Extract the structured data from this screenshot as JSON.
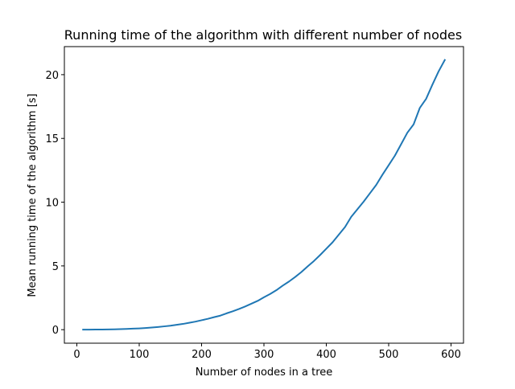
{
  "chart_data": {
    "type": "line",
    "title": "Running time of the algorithm with different number of nodes",
    "xlabel": "Number of nodes in a tree",
    "ylabel": "Mean running time of the algorithm [s]",
    "xlim": [
      -20,
      620
    ],
    "ylim": [
      -1.06,
      22.2
    ],
    "grid": false,
    "xticks": [
      0,
      100,
      200,
      300,
      400,
      500,
      600
    ],
    "yticks": [
      0,
      5,
      10,
      15,
      20
    ],
    "xtick_labels": [
      "0",
      "100",
      "200",
      "300",
      "400",
      "500",
      "600"
    ],
    "ytick_labels": [
      "0",
      "5",
      "10",
      "15",
      "20"
    ],
    "series": [
      {
        "color": "#1f77b4",
        "x": [
          10,
          20,
          30,
          40,
          50,
          60,
          70,
          80,
          90,
          100,
          110,
          120,
          130,
          140,
          150,
          160,
          170,
          180,
          190,
          200,
          210,
          220,
          230,
          240,
          250,
          260,
          270,
          280,
          290,
          300,
          310,
          320,
          330,
          340,
          350,
          360,
          370,
          380,
          390,
          400,
          410,
          420,
          430,
          440,
          450,
          460,
          470,
          480,
          490,
          500,
          510,
          520,
          530,
          540,
          550,
          560,
          570,
          580,
          590
        ],
        "y": [
          0.0,
          0.0,
          0.01,
          0.01,
          0.02,
          0.03,
          0.04,
          0.06,
          0.08,
          0.1,
          0.13,
          0.17,
          0.21,
          0.26,
          0.31,
          0.38,
          0.45,
          0.54,
          0.63,
          0.74,
          0.85,
          0.98,
          1.1,
          1.28,
          1.44,
          1.62,
          1.82,
          2.04,
          2.26,
          2.54,
          2.8,
          3.1,
          3.45,
          3.77,
          4.13,
          4.52,
          4.96,
          5.38,
          5.85,
          6.35,
          6.85,
          7.45,
          8.05,
          8.85,
          9.45,
          10.05,
          10.7,
          11.35,
          12.15,
          12.9,
          13.65,
          14.55,
          15.45,
          16.1,
          17.4,
          18.1,
          19.2,
          20.25,
          21.15
        ]
      }
    ]
  }
}
